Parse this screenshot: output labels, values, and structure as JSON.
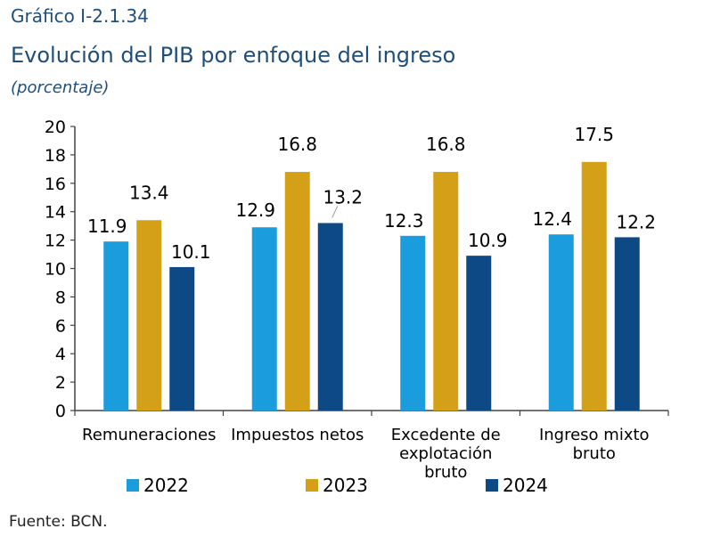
{
  "header": {
    "label": "Gráfico I-2.1.34",
    "title": "Evolución del PIB por enfoque del ingreso",
    "unit": "(porcentaje)"
  },
  "source": "Fuente: BCN.",
  "colors": {
    "2022": "#1b9cdc",
    "2023": "#d4a017",
    "2024": "#0d4a85"
  },
  "chart_data": {
    "type": "bar",
    "categories": [
      [
        "Remuneraciones"
      ],
      [
        "Impuestos netos"
      ],
      [
        "Excedente de",
        "explotación",
        "bruto"
      ],
      [
        "Ingreso mixto",
        "bruto"
      ]
    ],
    "series": [
      {
        "name": "2022",
        "values": [
          11.9,
          12.9,
          12.3,
          12.4
        ]
      },
      {
        "name": "2023",
        "values": [
          13.4,
          16.8,
          16.8,
          17.5
        ]
      },
      {
        "name": "2024",
        "values": [
          10.1,
          13.2,
          10.9,
          12.2
        ]
      }
    ],
    "ylim": [
      0,
      20
    ],
    "yticks": [
      0,
      2,
      4,
      6,
      8,
      10,
      12,
      14,
      16,
      18,
      20
    ],
    "legend_position": "bottom",
    "grid": false
  }
}
